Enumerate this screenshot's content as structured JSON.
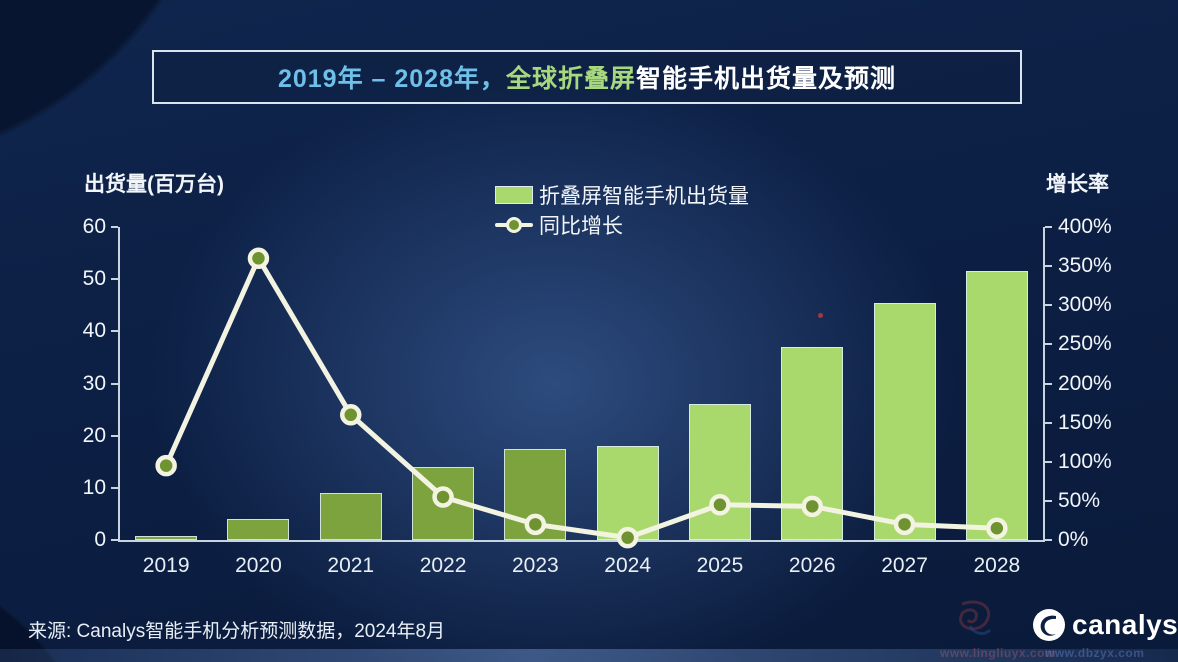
{
  "title": {
    "range": "2019年 – 2028年，",
    "highlight": "全球折叠屏",
    "rest": "智能手机出货量及预测"
  },
  "legend": {
    "bar_label": "折叠屏智能手机出货量",
    "line_label": "同比增长"
  },
  "source": "来源: Canalys智能手机分析预测数据，2024年8月",
  "logo_text": "canalys",
  "watermark": {
    "left": "www.lingliuyx.com",
    "right": "www.dbzyx.com"
  },
  "colors": {
    "bar_actual": "#7da33e",
    "bar_forecast": "#a9d96c",
    "line": "#f3f3e2",
    "marker_fill": "#6f9330",
    "axis": "#c8d4e0",
    "title_range": "#6fc0e8",
    "title_highlight": "#a7d87f",
    "background": "#0c1f44"
  },
  "chart_data": {
    "type": "bar+line combo",
    "title": "2019年 – 2028年，全球折叠屏智能手机出货量及预测",
    "categories": [
      "2019",
      "2020",
      "2021",
      "2022",
      "2023",
      "2024",
      "2025",
      "2026",
      "2027",
      "2028"
    ],
    "series": [
      {
        "name": "折叠屏智能手机出货量",
        "type": "bar",
        "axis": "left",
        "values": [
          0.7,
          4,
          9,
          14,
          17.5,
          18,
          26,
          37,
          45.5,
          51.5
        ],
        "forecast_start_index": 5
      },
      {
        "name": "同比增长",
        "type": "line",
        "axis": "right",
        "values": [
          95,
          360,
          160,
          55,
          20,
          3,
          45,
          43,
          20,
          15
        ]
      }
    ],
    "left_axis": {
      "label": "出货量(百万台)",
      "min": 0,
      "max": 60,
      "step": 10,
      "unit": ""
    },
    "right_axis": {
      "label": "增长率",
      "min": 0,
      "max": 400,
      "step": 50,
      "unit": "%"
    },
    "legend_position": "top-center",
    "grid": false,
    "source": "来源: Canalys智能手机分析预测数据，2024年8月"
  }
}
